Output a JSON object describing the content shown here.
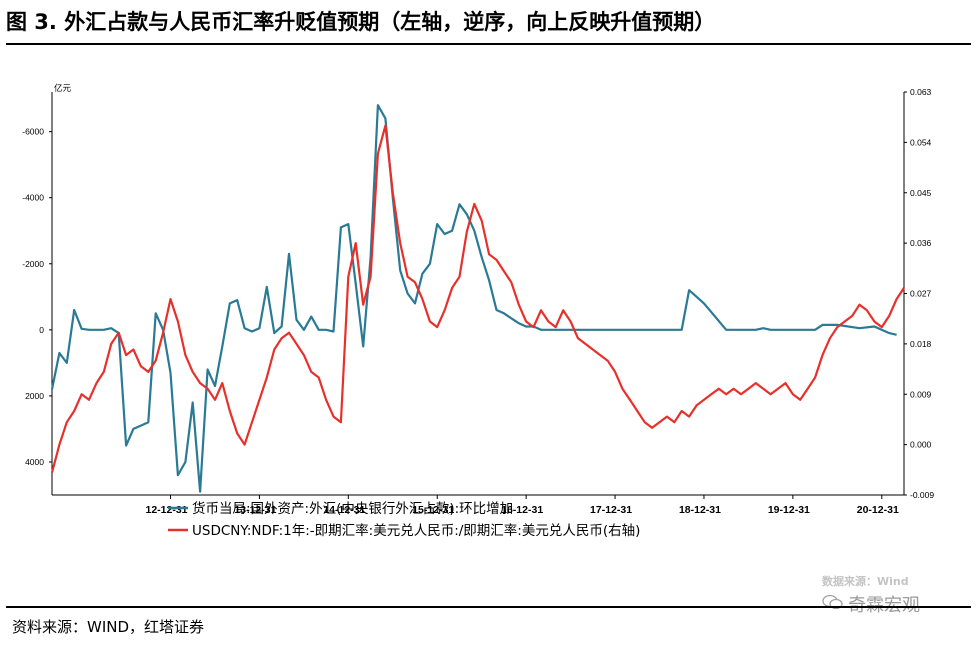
{
  "title": "图 3. 外汇占款与人民币汇率升贬值预期（左轴，逆序，向上反映升值预期）",
  "source": "资料来源：WIND，红塔证券",
  "watermark": {
    "source_line": "数据来源：Wind",
    "brand": "奇霖宏观"
  },
  "colors": {
    "series_left": "#2a7a95",
    "series_right": "#e8302b",
    "axis": "#000000"
  },
  "chart_data": {
    "type": "line",
    "left_axis": {
      "unit_label": "亿元",
      "reversed": true,
      "range": [
        5000,
        -7200
      ],
      "ticks": [
        4000,
        2000,
        0,
        -2000,
        -4000,
        -6000
      ]
    },
    "right_axis": {
      "range": [
        -0.009,
        0.063
      ],
      "ticks": [
        "0.063",
        "0.054",
        "0.045",
        "0.036",
        "0.027",
        "0.018",
        "0.009",
        "0.000",
        "-0.009"
      ]
    },
    "x_axis": {
      "range": [
        2011.667,
        2021.25
      ],
      "tick_labels": [
        "12-12-31",
        "13-12-31",
        "14-12-31",
        "15-12-31",
        "16-12-31",
        "17-12-31",
        "18-12-31",
        "19-12-31",
        "20-12-31"
      ],
      "tick_values": [
        2013.0,
        2014.0,
        2015.0,
        2016.0,
        2017.0,
        2018.0,
        2019.0,
        2020.0,
        2021.0
      ]
    },
    "grid": false,
    "legend_position": "bottom",
    "series": [
      {
        "name": "货币当局:国外资产:外汇(中央银行外汇占款):环比增加",
        "axis": "left",
        "x": [
          2011.667,
          2011.75,
          2011.833,
          2011.917,
          2012.0,
          2012.083,
          2012.167,
          2012.25,
          2012.333,
          2012.417,
          2012.5,
          2012.583,
          2012.667,
          2012.75,
          2012.833,
          2012.917,
          2013.0,
          2013.083,
          2013.167,
          2013.25,
          2013.333,
          2013.417,
          2013.5,
          2013.583,
          2013.667,
          2013.75,
          2013.833,
          2013.917,
          2014.0,
          2014.083,
          2014.167,
          2014.25,
          2014.333,
          2014.417,
          2014.5,
          2014.583,
          2014.667,
          2014.75,
          2014.833,
          2014.917,
          2015.0,
          2015.083,
          2015.167,
          2015.25,
          2015.333,
          2015.417,
          2015.5,
          2015.583,
          2015.667,
          2015.75,
          2015.833,
          2015.917,
          2016.0,
          2016.083,
          2016.167,
          2016.25,
          2016.333,
          2016.417,
          2016.5,
          2016.583,
          2016.667,
          2016.75,
          2016.833,
          2016.917,
          2017.0,
          2017.083,
          2017.167,
          2017.25,
          2017.333,
          2017.5,
          2017.75,
          2018.0,
          2018.25,
          2018.5,
          2018.583,
          2018.667,
          2018.75,
          2018.833,
          2018.917,
          2019.0,
          2019.25,
          2019.5,
          2019.583,
          2019.667,
          2019.75,
          2020.0,
          2020.25,
          2020.333,
          2020.5,
          2020.75,
          2020.917,
          2021.083,
          2021.167
        ],
        "y": [
          1800,
          700,
          1000,
          -600,
          -30,
          0,
          0,
          0,
          -50,
          100,
          3500,
          3000,
          2900,
          2800,
          -500,
          0,
          1300,
          4400,
          4000,
          2200,
          4900,
          1200,
          1700,
          500,
          -800,
          -900,
          -50,
          50,
          -50,
          -1300,
          100,
          -100,
          -2300,
          -300,
          0,
          -400,
          0,
          0,
          50,
          -3100,
          -3200,
          -1400,
          500,
          -2200,
          -6800,
          -6400,
          -4000,
          -1800,
          -1100,
          -800,
          -1700,
          -2000,
          -3200,
          -2900,
          -3000,
          -3800,
          -3500,
          -3000,
          -2200,
          -1500,
          -600,
          -500,
          -350,
          -200,
          -100,
          -100,
          0,
          0,
          0,
          0,
          0,
          0,
          0,
          0,
          0,
          0,
          0,
          -1200,
          -1000,
          -800,
          0,
          0,
          0,
          -50,
          0,
          0,
          0,
          -150,
          -150,
          -50,
          -100,
          100,
          150
        ]
      },
      {
        "name": "USDCNY:NDF:1年:-即期汇率:美元兑人民币:/即期汇率:美元兑人民币(右轴)",
        "axis": "right",
        "x": [
          2011.667,
          2011.75,
          2011.833,
          2011.917,
          2012.0,
          2012.083,
          2012.167,
          2012.25,
          2012.333,
          2012.417,
          2012.5,
          2012.583,
          2012.667,
          2012.75,
          2012.833,
          2012.917,
          2013.0,
          2013.083,
          2013.167,
          2013.25,
          2013.333,
          2013.417,
          2013.5,
          2013.583,
          2013.667,
          2013.75,
          2013.833,
          2013.917,
          2014.0,
          2014.083,
          2014.167,
          2014.25,
          2014.333,
          2014.417,
          2014.5,
          2014.583,
          2014.667,
          2014.75,
          2014.833,
          2014.917,
          2015.0,
          2015.083,
          2015.167,
          2015.25,
          2015.333,
          2015.417,
          2015.5,
          2015.583,
          2015.667,
          2015.75,
          2015.833,
          2015.917,
          2016.0,
          2016.083,
          2016.167,
          2016.25,
          2016.333,
          2016.417,
          2016.5,
          2016.583,
          2016.667,
          2016.75,
          2016.833,
          2016.917,
          2017.0,
          2017.083,
          2017.167,
          2017.25,
          2017.333,
          2017.417,
          2017.5,
          2017.583,
          2017.667,
          2017.75,
          2017.833,
          2017.917,
          2018.0,
          2018.083,
          2018.167,
          2018.25,
          2018.333,
          2018.417,
          2018.5,
          2018.583,
          2018.667,
          2018.75,
          2018.833,
          2018.917,
          2019.0,
          2019.083,
          2019.167,
          2019.25,
          2019.333,
          2019.417,
          2019.5,
          2019.583,
          2019.667,
          2019.75,
          2019.833,
          2019.917,
          2020.0,
          2020.083,
          2020.167,
          2020.25,
          2020.333,
          2020.417,
          2020.5,
          2020.583,
          2020.667,
          2020.75,
          2020.833,
          2020.917,
          2021.0,
          2021.083,
          2021.167,
          2021.25
        ],
        "y": [
          -0.005,
          0.0,
          0.004,
          0.006,
          0.009,
          0.008,
          0.011,
          0.013,
          0.018,
          0.02,
          0.016,
          0.017,
          0.014,
          0.013,
          0.015,
          0.02,
          0.026,
          0.022,
          0.016,
          0.013,
          0.011,
          0.01,
          0.008,
          0.011,
          0.006,
          0.002,
          0.0,
          0.004,
          0.008,
          0.012,
          0.017,
          0.019,
          0.02,
          0.018,
          0.016,
          0.013,
          0.012,
          0.008,
          0.005,
          0.004,
          0.03,
          0.036,
          0.025,
          0.03,
          0.052,
          0.057,
          0.045,
          0.036,
          0.03,
          0.029,
          0.026,
          0.022,
          0.021,
          0.024,
          0.028,
          0.03,
          0.038,
          0.043,
          0.04,
          0.034,
          0.033,
          0.031,
          0.029,
          0.025,
          0.022,
          0.021,
          0.024,
          0.022,
          0.021,
          0.024,
          0.022,
          0.019,
          0.018,
          0.017,
          0.016,
          0.015,
          0.013,
          0.01,
          0.008,
          0.006,
          0.004,
          0.003,
          0.004,
          0.005,
          0.004,
          0.006,
          0.005,
          0.007,
          0.008,
          0.009,
          0.01,
          0.009,
          0.01,
          0.009,
          0.01,
          0.011,
          0.01,
          0.009,
          0.01,
          0.011,
          0.009,
          0.008,
          0.01,
          0.012,
          0.016,
          0.019,
          0.021,
          0.022,
          0.023,
          0.025,
          0.024,
          0.022,
          0.021,
          0.023,
          0.026,
          0.028
        ]
      }
    ]
  }
}
